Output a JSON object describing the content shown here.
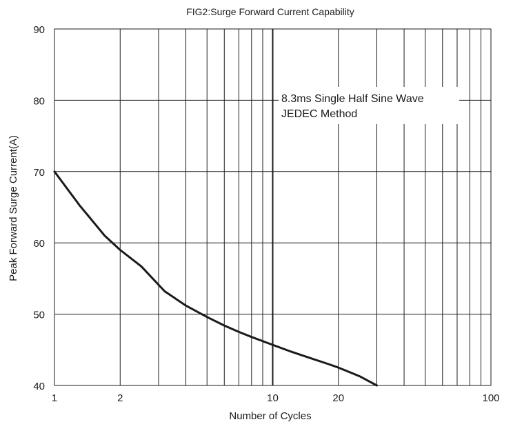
{
  "chart_data": {
    "type": "line",
    "title": "FIG2:Surge Forward Current Capability",
    "xlabel": "Number of Cycles",
    "ylabel": "Peak Forward Surge Current(A)",
    "xscale": "log",
    "xlim": [
      1,
      100
    ],
    "ylim": [
      40,
      90
    ],
    "x_ticks": [
      1,
      2,
      10,
      20,
      100
    ],
    "x_tick_labels": [
      "1",
      "2",
      "10",
      "20",
      "100"
    ],
    "y_ticks": [
      40,
      50,
      60,
      70,
      80,
      90
    ],
    "y_tick_labels": [
      "40",
      "50",
      "60",
      "70",
      "80",
      "90"
    ],
    "grid": true,
    "annotation": [
      "8.3ms Single Half Sine Wave",
      "JEDEC Method"
    ],
    "series": [
      {
        "color": "#1a1a1a",
        "points": [
          [
            1,
            70
          ],
          [
            1.3,
            65.3
          ],
          [
            1.7,
            61
          ],
          [
            2,
            59
          ],
          [
            2.5,
            56.7
          ],
          [
            3.2,
            53.2
          ],
          [
            4,
            51.2
          ],
          [
            5,
            49.6
          ],
          [
            6,
            48.4
          ],
          [
            7,
            47.5
          ],
          [
            8,
            46.8
          ],
          [
            10,
            45.7
          ],
          [
            12,
            44.8
          ],
          [
            15,
            43.8
          ],
          [
            18,
            43
          ],
          [
            20,
            42.5
          ],
          [
            25,
            41.3
          ],
          [
            30,
            40
          ]
        ]
      }
    ]
  }
}
